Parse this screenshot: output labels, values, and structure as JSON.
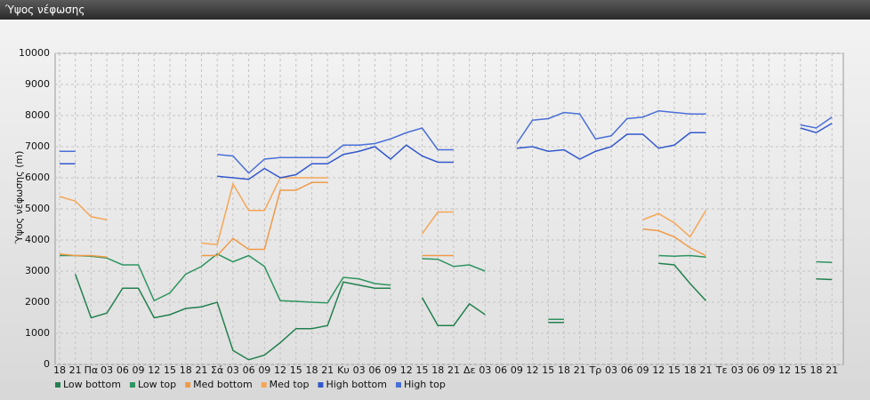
{
  "window_title": "Ύψος νέφωσης",
  "chart_data": {
    "type": "line",
    "y_label": "Ύψος νέφωσης (m)",
    "categories": [
      "18",
      "21",
      "Πα",
      "03",
      "06",
      "09",
      "12",
      "15",
      "18",
      "21",
      "Σά",
      "03",
      "06",
      "09",
      "12",
      "15",
      "18",
      "21",
      "Κυ",
      "03",
      "06",
      "09",
      "12",
      "15",
      "18",
      "21",
      "Δε",
      "03",
      "06",
      "09",
      "12",
      "15",
      "18",
      "21",
      "Τρ",
      "03",
      "06",
      "09",
      "12",
      "15",
      "18",
      "21",
      "Τε",
      "03",
      "06",
      "09",
      "12",
      "15",
      "18",
      "21"
    ],
    "ylim": [
      0,
      10000
    ],
    "yticks": [
      0,
      1000,
      2000,
      3000,
      4000,
      5000,
      6000,
      7000,
      8000,
      9000,
      10000
    ],
    "grid": true,
    "legend": "bottom",
    "series": [
      {
        "name": "Low bottom",
        "color": "#23804f",
        "values": [
          null,
          2900,
          1500,
          1650,
          2450,
          2450,
          1500,
          1600,
          1800,
          1850,
          2000,
          450,
          150,
          300,
          700,
          1150,
          1150,
          1250,
          2650,
          2550,
          2450,
          2450,
          null,
          2150,
          1250,
          1250,
          1950,
          1600,
          null,
          null,
          null,
          1350,
          1350,
          null,
          null,
          null,
          null,
          null,
          3250,
          3200,
          2600,
          2050,
          null,
          null,
          null,
          null,
          null,
          null,
          2750,
          2730
        ]
      },
      {
        "name": "Low top",
        "color": "#2e9460",
        "values": [
          3500,
          3500,
          3480,
          3420,
          3200,
          3200,
          2050,
          2300,
          2900,
          3150,
          3550,
          3300,
          3500,
          3150,
          2050,
          2030,
          2000,
          1980,
          2800,
          2750,
          2600,
          2550,
          null,
          3400,
          3380,
          3150,
          3200,
          3000,
          null,
          null,
          null,
          1450,
          1450,
          null,
          null,
          null,
          null,
          null,
          3500,
          3480,
          3500,
          3450,
          null,
          null,
          null,
          null,
          null,
          null,
          3300,
          3280
        ]
      },
      {
        "name": "Med bottom",
        "color": "#f09a48",
        "values": [
          3550,
          3500,
          3500,
          3450,
          null,
          null,
          null,
          null,
          null,
          3500,
          3500,
          4050,
          3700,
          3700,
          5600,
          5600,
          5850,
          5850,
          null,
          null,
          null,
          null,
          null,
          3500,
          3500,
          3500,
          null,
          null,
          null,
          null,
          null,
          null,
          null,
          null,
          null,
          null,
          null,
          4350,
          4300,
          4100,
          3750,
          3500,
          null,
          null,
          null,
          null,
          null,
          null,
          null,
          null
        ]
      },
      {
        "name": "Med top",
        "color": "#f5a656",
        "values": [
          5400,
          5250,
          4750,
          4650,
          null,
          null,
          null,
          null,
          null,
          3900,
          3850,
          5800,
          4950,
          4950,
          6000,
          6000,
          6000,
          6000,
          null,
          null,
          null,
          null,
          null,
          4200,
          4900,
          4900,
          null,
          null,
          null,
          null,
          null,
          null,
          null,
          null,
          null,
          null,
          null,
          4650,
          4850,
          4550,
          4100,
          4950,
          null,
          null,
          null,
          null,
          null,
          null,
          null,
          null
        ]
      },
      {
        "name": "High bottom",
        "color": "#3358cc",
        "values": [
          6450,
          6450,
          null,
          null,
          null,
          null,
          null,
          null,
          null,
          null,
          6050,
          6000,
          5950,
          6300,
          6000,
          6100,
          6450,
          6450,
          6750,
          6850,
          7000,
          6600,
          7050,
          6700,
          6500,
          6500,
          null,
          null,
          null,
          6950,
          7000,
          6850,
          6900,
          6600,
          6850,
          7000,
          7400,
          7400,
          6950,
          7050,
          7450,
          7450,
          null,
          null,
          null,
          null,
          null,
          7600,
          7450,
          7750
        ]
      },
      {
        "name": "High top",
        "color": "#4a6fd8",
        "values": [
          6850,
          6850,
          null,
          null,
          null,
          null,
          null,
          null,
          null,
          null,
          6750,
          6700,
          6150,
          6600,
          6650,
          6650,
          6650,
          6650,
          7050,
          7050,
          7100,
          7250,
          7450,
          7600,
          6900,
          6900,
          null,
          null,
          null,
          7100,
          7850,
          7900,
          8100,
          8050,
          7250,
          7350,
          7900,
          7950,
          8150,
          8100,
          8050,
          8050,
          null,
          null,
          null,
          null,
          null,
          7700,
          7600,
          7950
        ]
      }
    ]
  }
}
